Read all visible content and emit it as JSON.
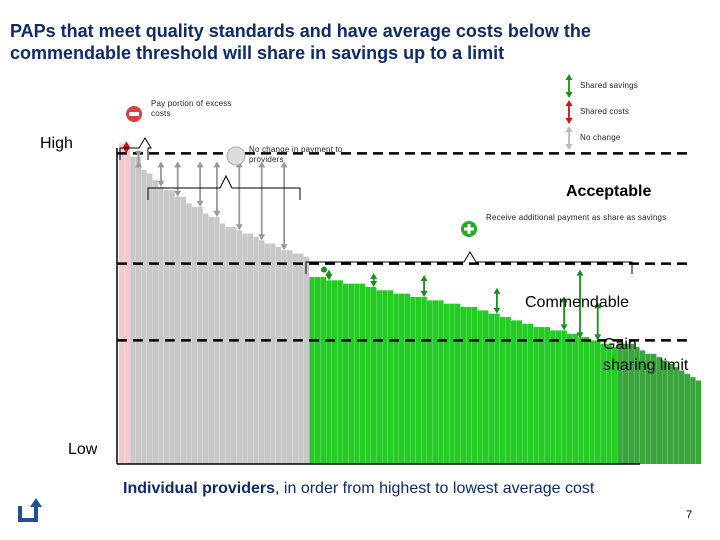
{
  "slide": {
    "title_line1": "PAPs that meet quality standards and have average costs below the",
    "title_line2": "commendable threshold will share in savings up to a limit",
    "page_number": "7",
    "back_icon": "return-arrow-icon"
  },
  "legend": {
    "shared_savings": "Shared savings",
    "shared_costs": "Shared costs",
    "no_change": "No change"
  },
  "annotations": {
    "pay_portion": "Pay portion of excess costs",
    "no_change_payment": "No change in payment to providers",
    "receive_additional": "Receive additional payment as share as savings",
    "minus_icon": "minus-icon",
    "plus_icon": "plus-icon"
  },
  "axis": {
    "high": "High",
    "low": "Low",
    "x_label_bold": "Individual providers",
    "x_label_rest": ", in order from highest to lowest average cost"
  },
  "thresholds": {
    "acceptable": "Acceptable",
    "commendable": "Commendable",
    "gain_sharing_line1": "Gain",
    "gain_sharing_line2": "sharing limit"
  },
  "colors": {
    "excess_bar": "#f7c9cf",
    "no_change_bar": "#c8c8c8",
    "savings_bar": "#22cc22",
    "limit_bar": "#3aa53a",
    "arrow_green": "#1a8f1a",
    "arrow_red": "#cc1111",
    "arrow_gray": "#999999"
  },
  "chart_data": {
    "type": "bar",
    "description_units": "relative average cost",
    "groups": {
      "excess": [
        96,
        96
      ],
      "no_change": [
        92,
        92,
        88,
        87,
        85,
        83,
        82,
        82,
        80,
        80,
        78,
        77,
        77,
        75,
        74,
        74,
        72,
        71,
        71,
        70,
        69,
        69,
        68,
        67,
        66,
        66,
        65,
        64,
        64,
        63,
        63,
        62
      ],
      "savings": [
        56,
        56,
        56,
        55,
        55,
        55,
        54,
        54,
        54,
        54,
        53,
        53,
        52,
        52,
        52,
        51,
        51,
        51,
        50,
        50,
        50,
        49,
        49,
        49,
        48,
        48,
        48,
        47,
        47,
        47,
        46,
        46,
        45,
        45,
        44,
        44,
        43,
        43,
        42,
        42,
        41,
        41,
        41,
        40,
        40,
        40,
        39,
        39,
        38,
        38,
        37,
        37,
        36,
        36,
        35
      ],
      "limit": [
        37,
        36,
        36,
        35,
        34,
        33,
        33,
        32,
        31,
        30,
        29,
        28,
        27,
        26,
        25
      ]
    },
    "acceptable_threshold": 93,
    "commendable_threshold": 60,
    "gain_sharing_limit": 37,
    "ylim": [
      0,
      100
    ]
  }
}
